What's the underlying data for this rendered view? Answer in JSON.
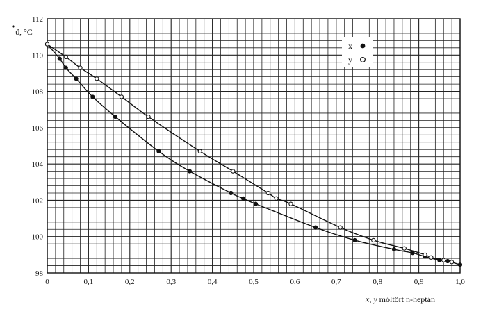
{
  "chart_data": {
    "type": "scatter",
    "ylabel": "ϑ, °C",
    "xlabel_var": "x, y",
    "xlabel_rest": " móltört n-heptán",
    "xlim": [
      0,
      1.0
    ],
    "ylim": [
      98,
      112
    ],
    "x_ticks": [
      "0",
      "0,1",
      "0,2",
      "0,3",
      "0,4",
      "0,5",
      "0,6",
      "0,7",
      "0,8",
      "0,9",
      "1,0"
    ],
    "y_ticks": [
      "98",
      "100",
      "102",
      "104",
      "106",
      "108",
      "110",
      "112"
    ],
    "grid": true,
    "legend_position": "top-right",
    "series": [
      {
        "name": "x",
        "marker": "filled-circle",
        "points": [
          [
            0.0,
            110.6
          ],
          [
            0.03,
            109.8
          ],
          [
            0.045,
            109.3
          ],
          [
            0.07,
            108.7
          ],
          [
            0.11,
            107.7
          ],
          [
            0.165,
            106.6
          ],
          [
            0.27,
            104.7
          ],
          [
            0.345,
            103.6
          ],
          [
            0.445,
            102.4
          ],
          [
            0.475,
            102.1
          ],
          [
            0.505,
            101.8
          ],
          [
            0.65,
            100.5
          ],
          [
            0.745,
            99.8
          ],
          [
            0.84,
            99.3
          ],
          [
            0.885,
            99.1
          ],
          [
            0.915,
            98.9
          ],
          [
            0.95,
            98.7
          ],
          [
            0.97,
            98.65
          ],
          [
            1.0,
            98.45
          ]
        ]
      },
      {
        "name": "y",
        "marker": "open-circle",
        "points": [
          [
            0.0,
            110.6
          ],
          [
            0.045,
            109.9
          ],
          [
            0.08,
            109.3
          ],
          [
            0.12,
            108.7
          ],
          [
            0.18,
            107.7
          ],
          [
            0.245,
            106.6
          ],
          [
            0.37,
            104.7
          ],
          [
            0.45,
            103.6
          ],
          [
            0.535,
            102.4
          ],
          [
            0.555,
            102.1
          ],
          [
            0.59,
            101.8
          ],
          [
            0.71,
            100.5
          ],
          [
            0.79,
            99.8
          ],
          [
            0.865,
            99.35
          ],
          [
            0.915,
            99.0
          ],
          [
            0.93,
            98.85
          ],
          [
            0.96,
            98.7
          ],
          [
            0.98,
            98.6
          ]
        ]
      }
    ]
  }
}
